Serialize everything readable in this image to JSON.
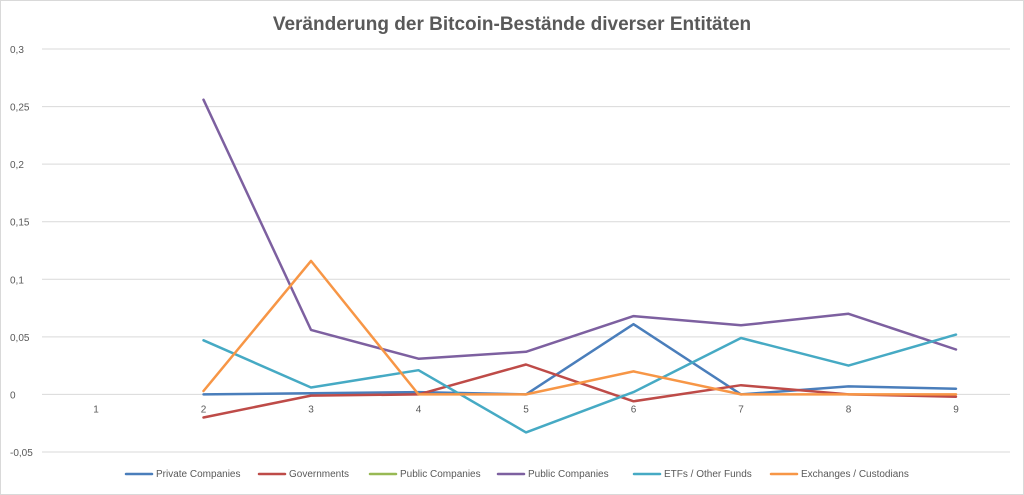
{
  "chart_data": {
    "type": "line",
    "title": "Veränderung der Bitcoin-Bestände diverser Entitäten",
    "xlabel": "",
    "ylabel": "",
    "categories": [
      "1",
      "2",
      "3",
      "4",
      "5",
      "6",
      "7",
      "8",
      "9"
    ],
    "ylim": [
      -0.05,
      0.3
    ],
    "yticks": [
      -0.05,
      0,
      0.05,
      0.1,
      0.15,
      0.2,
      0.25,
      0.3
    ],
    "ytick_labels": [
      "-0,05",
      "0",
      "0,05",
      "0,1",
      "0,15",
      "0,2",
      "0,25",
      "0,3"
    ],
    "grid": true,
    "legend_position": "bottom",
    "series": [
      {
        "name": "Private Companies",
        "color": "#4a7ebb",
        "values": [
          null,
          0.0,
          0.001,
          0.002,
          0.0,
          0.061,
          0.0,
          0.007,
          0.005
        ]
      },
      {
        "name": "Governments",
        "color": "#be4b48",
        "values": [
          null,
          -0.02,
          -0.001,
          0.0,
          0.026,
          -0.006,
          0.008,
          0.0,
          -0.002
        ]
      },
      {
        "name": "Public Companies",
        "color": "#98b954",
        "values": [
          null,
          null,
          null,
          null,
          null,
          null,
          null,
          null,
          null
        ]
      },
      {
        "name": "Public Companies",
        "color": "#7d60a0",
        "values": [
          null,
          0.256,
          0.056,
          0.031,
          0.037,
          0.068,
          0.06,
          0.07,
          0.039
        ]
      },
      {
        "name": "ETFs / Other Funds",
        "color": "#46aac4",
        "values": [
          null,
          0.047,
          0.006,
          0.021,
          -0.033,
          0.002,
          0.049,
          0.025,
          0.052
        ]
      },
      {
        "name": "Exchanges / Custodians",
        "color": "#f79646",
        "values": [
          null,
          0.003,
          0.116,
          0.0,
          0.0,
          0.02,
          0.0,
          0.0,
          0.0
        ]
      }
    ]
  }
}
